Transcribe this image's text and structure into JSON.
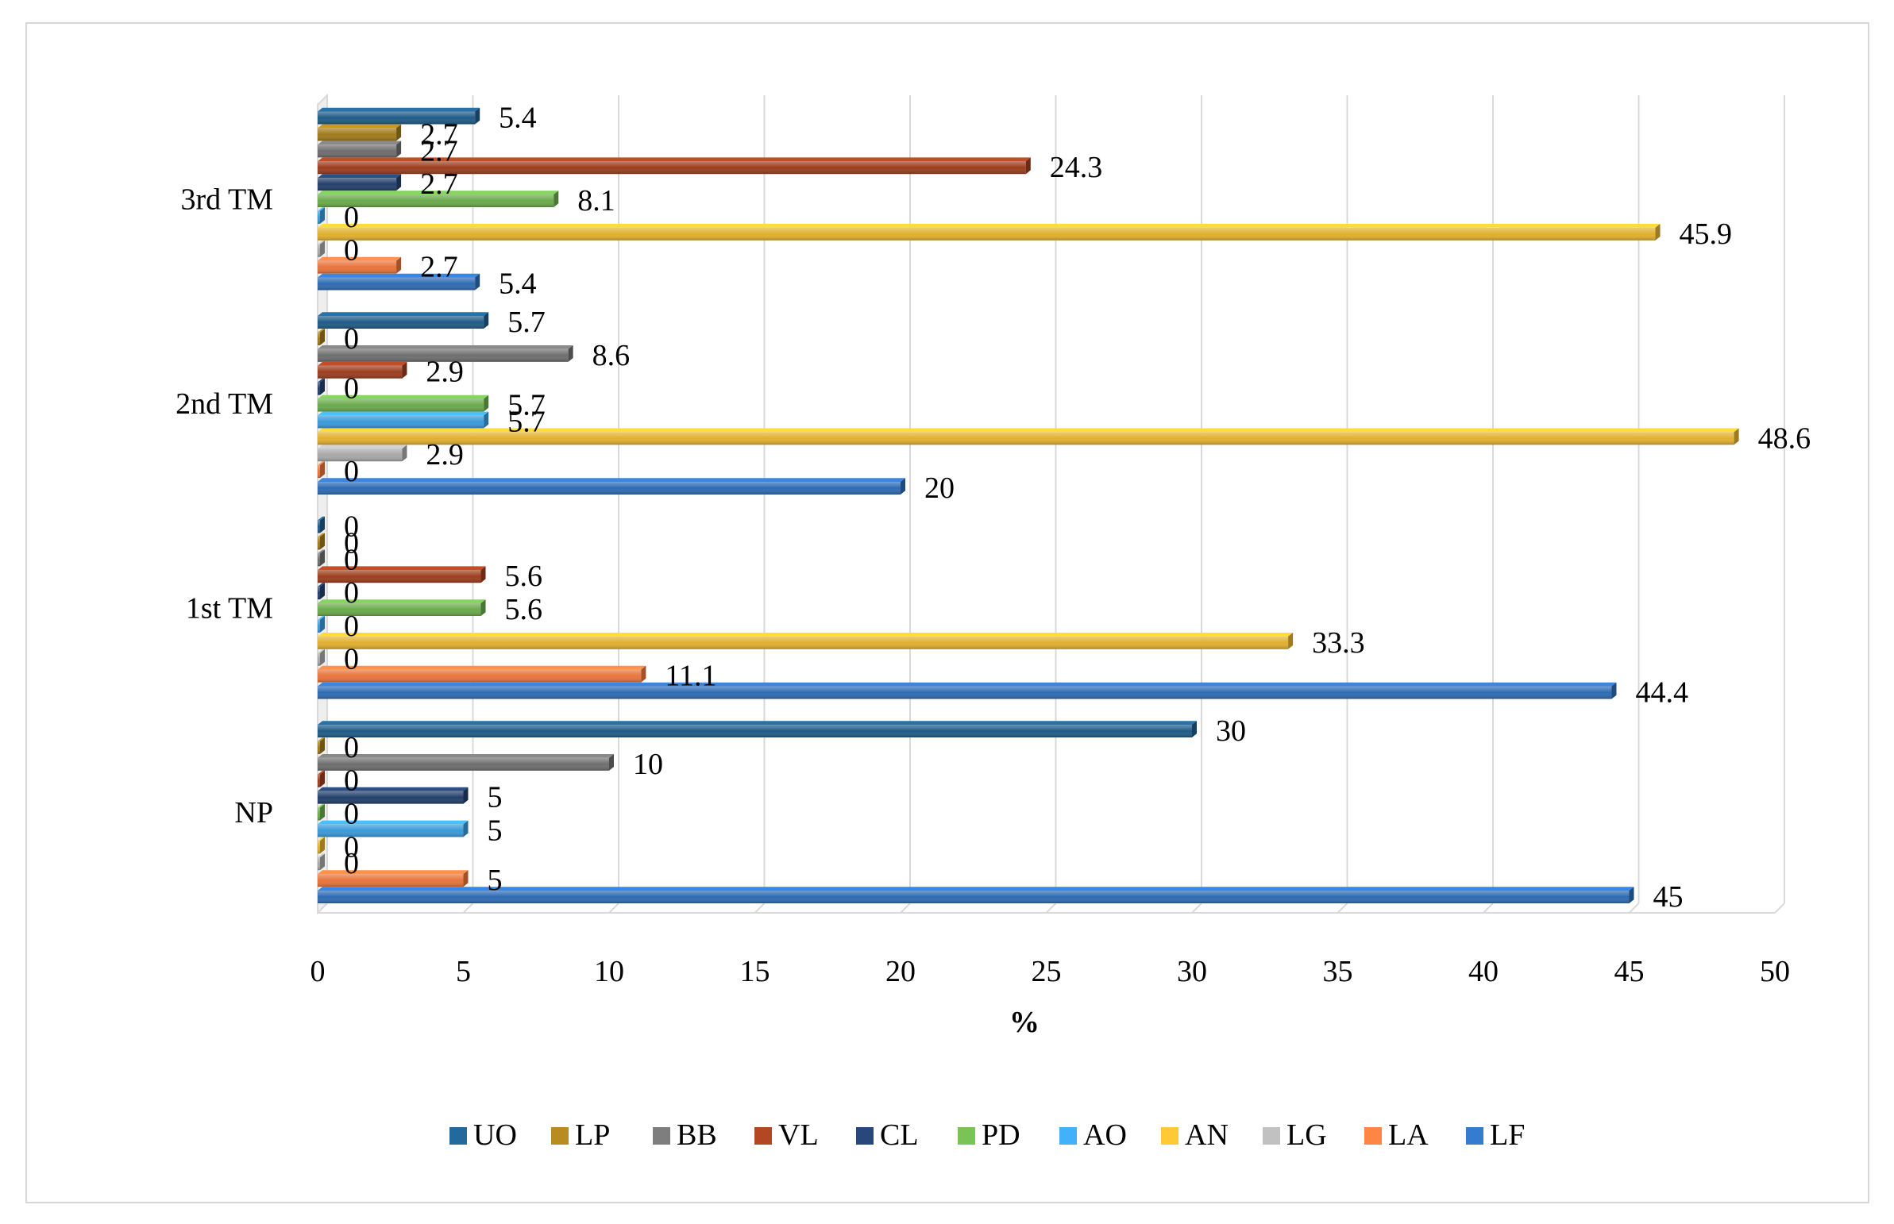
{
  "chart_data": {
    "type": "bar",
    "orientation": "horizontal",
    "title": "",
    "xlabel": "%",
    "ylabel": "",
    "xlim": [
      0,
      50
    ],
    "xticks": [
      0,
      5,
      10,
      15,
      20,
      25,
      30,
      35,
      40,
      45,
      50
    ],
    "grid": true,
    "legend_position": "bottom",
    "categories": [
      "NP",
      "1st TM",
      "2nd TM",
      "3rd TM"
    ],
    "series": [
      {
        "name": "LF",
        "color": "#2e6bb3",
        "values": [
          45,
          44.4,
          20,
          5.4
        ]
      },
      {
        "name": "LA",
        "color": "#e8743b",
        "values": [
          5,
          11.1,
          0,
          2.7
        ]
      },
      {
        "name": "LG",
        "color": "#a8a8a8",
        "values": [
          0,
          0,
          2.9,
          0
        ]
      },
      {
        "name": "AN",
        "color": "#e2b02f",
        "values": [
          0,
          33.3,
          48.6,
          45.9
        ]
      },
      {
        "name": "AO",
        "color": "#3a9ad9",
        "values": [
          5,
          0,
          5.7,
          0
        ]
      },
      {
        "name": "PD",
        "color": "#6aaa4b",
        "values": [
          0,
          5.6,
          5.7,
          8.1
        ]
      },
      {
        "name": "CL",
        "color": "#233f6b",
        "values": [
          5,
          0,
          0,
          2.7
        ]
      },
      {
        "name": "VL",
        "color": "#9c3e1e",
        "values": [
          0,
          5.6,
          2.9,
          24.3
        ]
      },
      {
        "name": "BB",
        "color": "#6e6e6e",
        "values": [
          10,
          0,
          8.6,
          2.7
        ]
      },
      {
        "name": "LP",
        "color": "#a07a1c",
        "values": [
          0,
          0,
          0,
          2.7
        ]
      },
      {
        "name": "UO",
        "color": "#1f5b87",
        "values": [
          30,
          0,
          5.7,
          5.4
        ]
      }
    ],
    "legend_order": [
      "UO",
      "LP",
      "BB",
      "VL",
      "CL",
      "PD",
      "AO",
      "AN",
      "LG",
      "LA",
      "LF"
    ]
  }
}
